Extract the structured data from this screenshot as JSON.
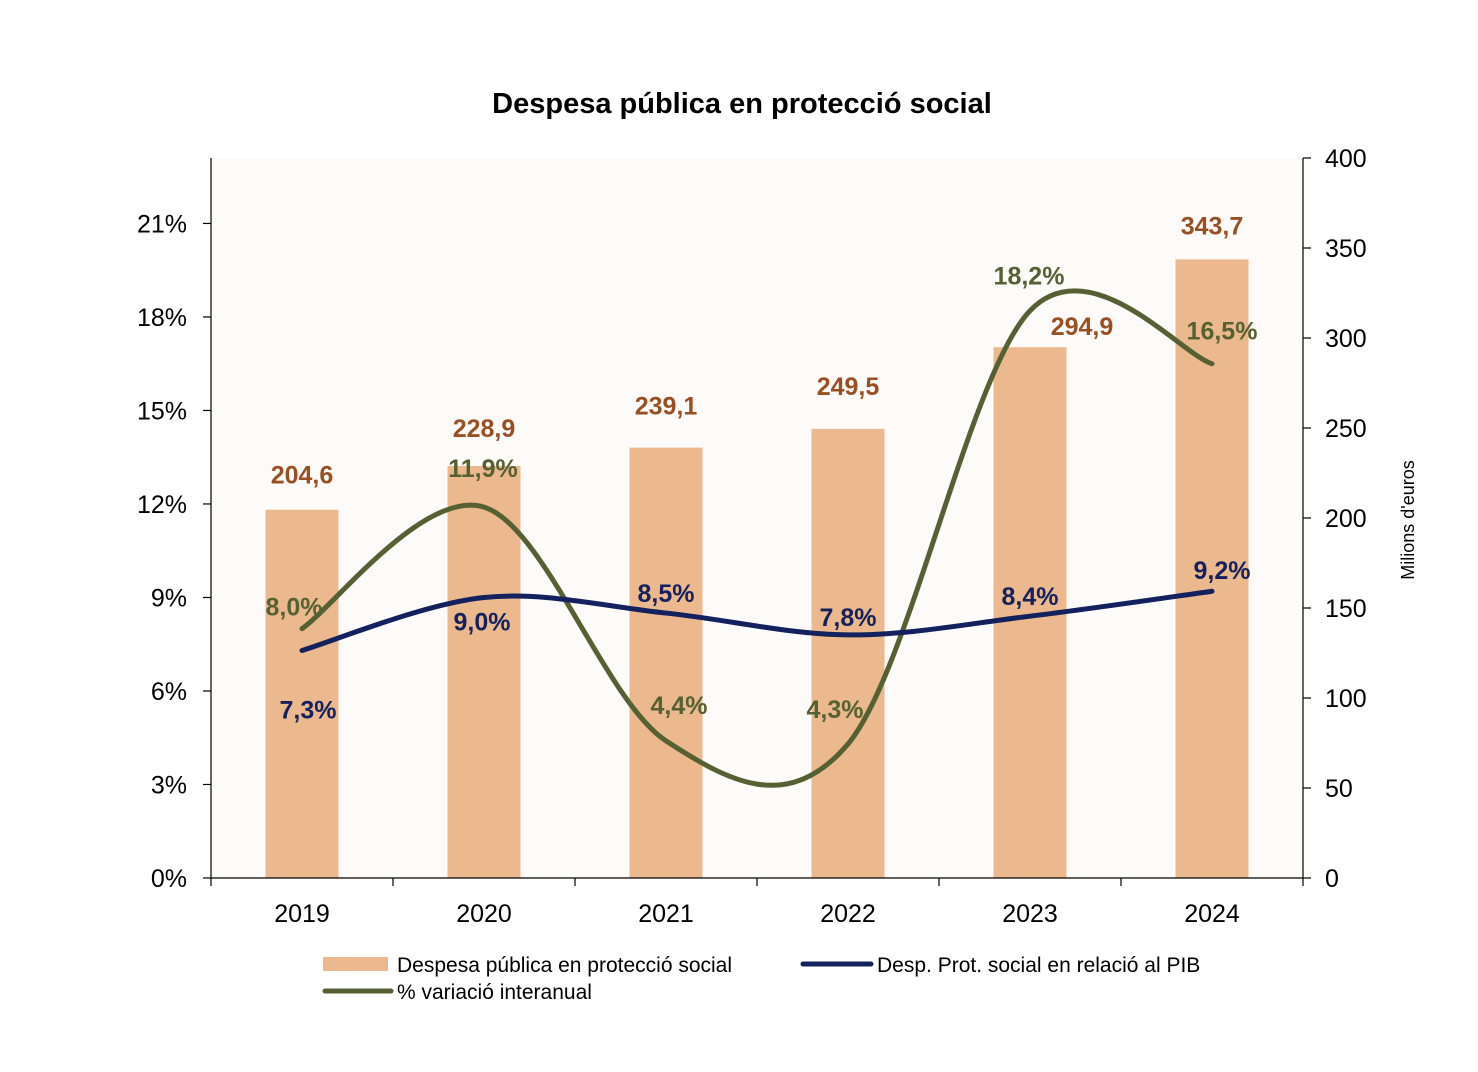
{
  "chart_data": {
    "type": "bar",
    "title": "Despesa pública en protecció social",
    "categories": [
      "2019",
      "2020",
      "2021",
      "2022",
      "2023",
      "2024"
    ],
    "y_left": {
      "ticks": [
        "0%",
        "3%",
        "6%",
        "9%",
        "12%",
        "15%",
        "18%",
        "21%"
      ],
      "range": [
        0,
        23.1
      ]
    },
    "y_right": {
      "label": "Milions d'euros",
      "ticks": [
        "0",
        "50",
        "100",
        "150",
        "200",
        "250",
        "300",
        "350",
        "400"
      ],
      "range": [
        0,
        400
      ]
    },
    "series": [
      {
        "name": "Despesa pública en protecció social",
        "type": "bar",
        "axis": "right",
        "color": "#EBB98D",
        "label_color": "#9A4F23",
        "values": [
          204.6,
          228.9,
          239.1,
          249.5,
          294.9,
          343.7
        ],
        "labels": [
          "204,6",
          "228,9",
          "239,1",
          "249,5",
          "294,9",
          "343,7"
        ]
      },
      {
        "name": "Desp. Prot. social en relació al PIB",
        "type": "line",
        "axis": "left",
        "color": "#13215E",
        "values": [
          7.3,
          9.0,
          8.5,
          7.8,
          8.4,
          9.2
        ],
        "labels": [
          "7,3%",
          "9,0%",
          "8,5%",
          "7,8%",
          "8,4%",
          "9,2%"
        ]
      },
      {
        "name": "% variació interanual",
        "type": "line",
        "axis": "left",
        "color": "#556133",
        "values": [
          8.0,
          11.9,
          4.4,
          4.3,
          18.2,
          16.5
        ],
        "labels": [
          "8,0%",
          "11,9%",
          "4,4%",
          "4,3%",
          "18,2%",
          "16,5%"
        ]
      }
    ],
    "plot_background": "#FCFBF9"
  }
}
